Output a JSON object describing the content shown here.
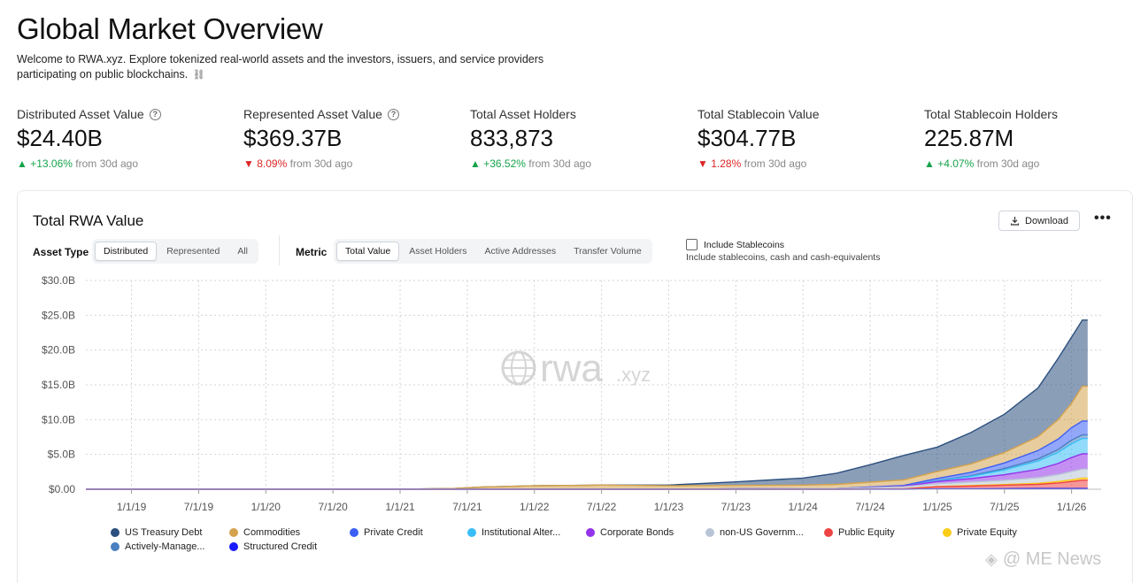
{
  "header": {
    "title": "Global Market Overview",
    "description": "Welcome to RWA.xyz. Explore tokenized real-world assets and the investors, issuers, and service providers participating on public blockchains.",
    "chain_icon": "⛓"
  },
  "stats": [
    {
      "label": "Distributed Asset Value",
      "value": "$24.40B",
      "arrow": "▲",
      "change": "+13.06%",
      "suffix": "from 30d ago",
      "direction": "up",
      "help": "?"
    },
    {
      "label": "Represented Asset Value",
      "value": "$369.37B",
      "arrow": "▼",
      "change": "8.09%",
      "suffix": "from 30d ago",
      "direction": "down",
      "help": "?"
    },
    {
      "label": "Total Asset Holders",
      "value": "833,873",
      "arrow": "▲",
      "change": "+36.52%",
      "suffix": "from 30d ago",
      "direction": "up"
    },
    {
      "label": "Total Stablecoin Value",
      "value": "$304.77B",
      "arrow": "▼",
      "change": "1.28%",
      "suffix": "from 30d ago",
      "direction": "down"
    },
    {
      "label": "Total Stablecoin Holders",
      "value": "225.87M",
      "arrow": "▲",
      "change": "+4.07%",
      "suffix": "from 30d ago",
      "direction": "up"
    }
  ],
  "card": {
    "title": "Total RWA Value",
    "download_label": "Download",
    "more_label": "•••",
    "asset_type_label": "Asset Type",
    "asset_type_options": [
      "Distributed",
      "Represented",
      "All"
    ],
    "asset_type_selected": "Distributed",
    "metric_label": "Metric",
    "metric_options": [
      "Total Value",
      "Asset Holders",
      "Active Addresses",
      "Transfer Volume"
    ],
    "metric_selected": "Total Value",
    "stablecoins_label": "Include Stablecoins",
    "stablecoins_sub": "Include stablecoins, cash and cash-equivalents",
    "stablecoins_checked": false
  },
  "chart_watermark": {
    "main": "rwa",
    "suffix": ".xyz"
  },
  "chart_data": {
    "type": "area",
    "stacked": true,
    "title": "Total RWA Value",
    "ylabel": "",
    "xlabel": "",
    "ylim": [
      0,
      30
    ],
    "y_ticks": [
      "$0.00",
      "$5.0B",
      "$10.0B",
      "$15.0B",
      "$20.0B",
      "$25.0B",
      "$30.0B"
    ],
    "y_tick_values": [
      0,
      5,
      10,
      15,
      20,
      25,
      30
    ],
    "x_ticks": [
      "1/1/19",
      "7/1/19",
      "1/1/20",
      "7/1/20",
      "1/1/21",
      "7/1/21",
      "1/1/22",
      "7/1/22",
      "1/1/23",
      "7/1/23",
      "1/1/24",
      "7/1/24",
      "1/1/25",
      "7/1/25",
      "1/1/26"
    ],
    "x_tick_values": [
      2019.0,
      2019.5,
      2020.0,
      2020.5,
      2021.0,
      2021.5,
      2022.0,
      2022.5,
      2023.0,
      2023.5,
      2024.0,
      2024.5,
      2025.0,
      2025.5,
      2026.0
    ],
    "xlim": [
      2018.66,
      2026.22
    ],
    "x": [
      2018.66,
      2019.0,
      2020.0,
      2021.0,
      2021.4,
      2021.6,
      2022.0,
      2022.5,
      2023.0,
      2023.5,
      2024.0,
      2024.25,
      2024.5,
      2024.75,
      2025.0,
      2025.25,
      2025.5,
      2025.75,
      2025.9,
      2026.0,
      2026.08,
      2026.12
    ],
    "series": [
      {
        "name": "Structured Credit",
        "color": "#1a1aff",
        "values": [
          0,
          0,
          0,
          0,
          0,
          0,
          0,
          0,
          0,
          0,
          0,
          0,
          0,
          0,
          0.05,
          0.05,
          0.08,
          0.1,
          0.1,
          0.1,
          0.1,
          0.1
        ]
      },
      {
        "name": "Public Equity",
        "color": "#ef4444",
        "values": [
          0,
          0,
          0,
          0,
          0,
          0,
          0,
          0,
          0,
          0,
          0,
          0,
          0.02,
          0.05,
          0.3,
          0.4,
          0.5,
          0.6,
          0.8,
          1.0,
          1.2,
          1.2
        ]
      },
      {
        "name": "Private Equity",
        "color": "#facc15",
        "values": [
          0,
          0,
          0,
          0,
          0,
          0,
          0,
          0,
          0,
          0,
          0,
          0,
          0,
          0,
          0.05,
          0.08,
          0.1,
          0.15,
          0.2,
          0.25,
          0.3,
          0.3
        ]
      },
      {
        "name": "non-US Government Debt",
        "color": "#b8c4d6",
        "values": [
          0,
          0,
          0,
          0,
          0,
          0,
          0,
          0,
          0,
          0.05,
          0.1,
          0.1,
          0.2,
          0.3,
          0.4,
          0.5,
          0.6,
          0.8,
          1.0,
          1.2,
          1.3,
          1.3
        ]
      },
      {
        "name": "Corporate Bonds",
        "color": "#9333ea",
        "values": [
          0,
          0,
          0,
          0,
          0,
          0,
          0,
          0,
          0,
          0,
          0,
          0,
          0.05,
          0.1,
          0.3,
          0.5,
          0.8,
          1.2,
          1.6,
          2.0,
          2.2,
          2.2
        ]
      },
      {
        "name": "Institutional Alternative Funds",
        "color": "#38bdf8",
        "values": [
          0,
          0,
          0,
          0,
          0,
          0,
          0,
          0,
          0,
          0,
          0,
          0,
          0,
          0,
          0.1,
          0.3,
          0.7,
          1.2,
          1.6,
          2.0,
          2.2,
          2.2
        ]
      },
      {
        "name": "Actively-Managed Strategies",
        "color": "#4a7fc1",
        "values": [
          0,
          0,
          0,
          0,
          0,
          0,
          0,
          0,
          0,
          0,
          0,
          0,
          0,
          0,
          0.05,
          0.1,
          0.2,
          0.3,
          0.4,
          0.5,
          0.5,
          0.5
        ]
      },
      {
        "name": "Private Credit",
        "color": "#3b5ef5",
        "values": [
          0,
          0,
          0,
          0,
          0,
          0,
          0,
          0,
          0,
          0,
          0,
          0,
          0.05,
          0.1,
          0.3,
          0.5,
          0.8,
          1.2,
          1.5,
          1.8,
          2.0,
          2.0
        ]
      },
      {
        "name": "Commodities",
        "color": "#d4a24c",
        "values": [
          0,
          0,
          0,
          0,
          0.1,
          0.3,
          0.5,
          0.6,
          0.5,
          0.5,
          0.5,
          0.6,
          0.7,
          0.8,
          1.0,
          1.2,
          1.5,
          2.0,
          2.8,
          3.5,
          5.0,
          5.0
        ]
      },
      {
        "name": "US Treasury Debt",
        "color": "#2b4f7e",
        "values": [
          0,
          0,
          0,
          0,
          0,
          0,
          0,
          0,
          0.1,
          0.5,
          1.0,
          1.6,
          2.5,
          3.5,
          3.5,
          4.5,
          5.5,
          7.0,
          8.8,
          9.5,
          9.5,
          9.5
        ]
      }
    ]
  },
  "legend": [
    {
      "label": "US Treasury Debt",
      "color": "#2b4f7e"
    },
    {
      "label": "Commodities",
      "color": "#d4a24c"
    },
    {
      "label": "Private Credit",
      "color": "#3b5ef5"
    },
    {
      "label": "Institutional Alter...",
      "color": "#38bdf8"
    },
    {
      "label": "Corporate Bonds",
      "color": "#9333ea"
    },
    {
      "label": "non-US Governm...",
      "color": "#b8c4d6"
    },
    {
      "label": "Public Equity",
      "color": "#ef4444"
    },
    {
      "label": "Private Equity",
      "color": "#facc15"
    },
    {
      "label": "Actively-Manage...",
      "color": "#4a7fc1"
    },
    {
      "label": "Structured Credit",
      "color": "#1a1aff"
    }
  ],
  "watermark": {
    "icon": "◈",
    "text": "@ ME News"
  }
}
